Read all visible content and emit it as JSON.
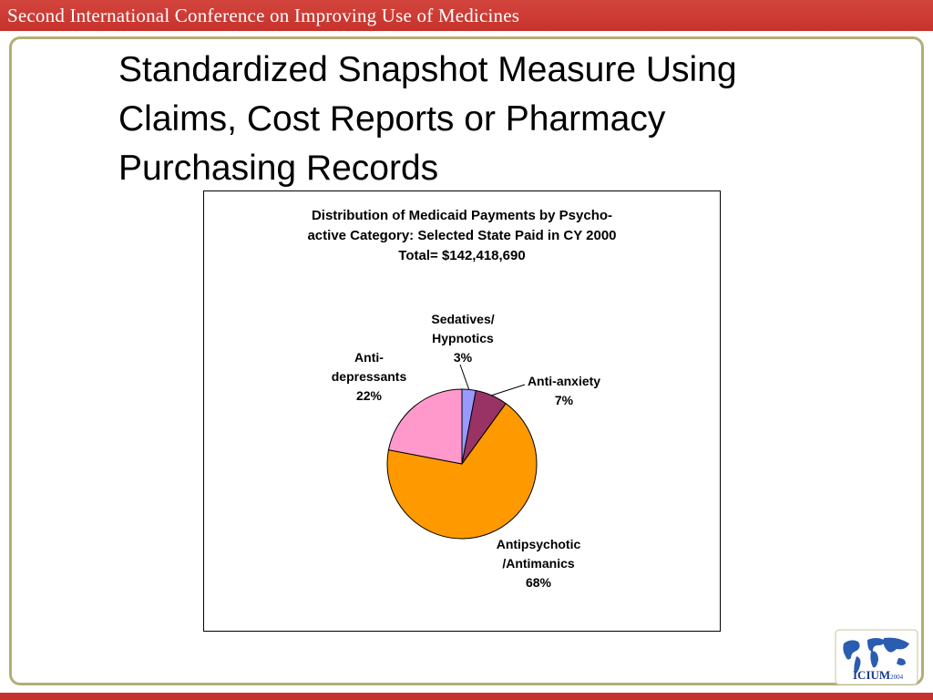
{
  "banner": {
    "text": "Second International Conference on Improving Use of Medicines"
  },
  "slide": {
    "title_lines": [
      "Standardized Snapshot Measure Using",
      "Claims, Cost Reports or Pharmacy",
      "Purchasing Records"
    ]
  },
  "chart_data": {
    "type": "pie",
    "title_lines": [
      "Distribution of Medicaid Payments by Psycho-",
      "active Category: Selected State Paid in CY 2000",
      "Total= $142,418,690"
    ],
    "slices": [
      {
        "name_lines": [
          "Sedatives/",
          "Hypnotics"
        ],
        "value": 3,
        "label": "3%",
        "color": "#9999ff"
      },
      {
        "name_lines": [
          "Anti-anxiety"
        ],
        "value": 7,
        "label": "7%",
        "color": "#993366"
      },
      {
        "name_lines": [
          "Antipsychotic",
          "/Antimanics"
        ],
        "value": 68,
        "label": "68%",
        "color": "#ff9900"
      },
      {
        "name_lines": [
          "Anti-",
          "depressants"
        ],
        "value": 22,
        "label": "22%",
        "color": "#ff99cc"
      }
    ],
    "start_angle_deg": 0,
    "direction": "clockwise"
  },
  "logo": {
    "icon": "globe-map-icon",
    "text": "ICIUM",
    "year": "2004"
  }
}
